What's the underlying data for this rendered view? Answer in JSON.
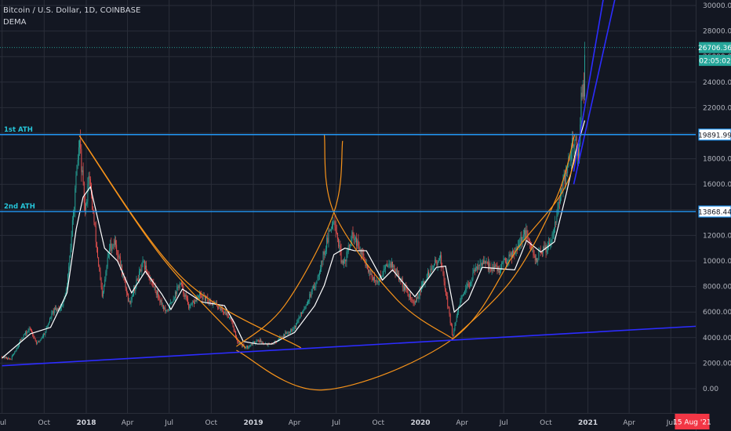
{
  "header": {
    "symbol_line": "Bitcoin / U.S. Dollar, 1D, COINBASE",
    "indicator": "DEMA"
  },
  "colors": {
    "background": "#131722",
    "grid": "#2a2e39",
    "axis_text": "#b2b5be",
    "candle_up": "#26a69a",
    "candle_down": "#ef5350",
    "dema": "#ffffff",
    "ath_line": "#2196f3",
    "ath_label": "#26c6da",
    "arc": "#f7931a",
    "trend": "#2c2cff",
    "current_price": "#26a69a",
    "date_badge": "#f23645"
  },
  "chart_data": {
    "type": "candlestick",
    "y_axis": {
      "ticks": [
        "30000.00",
        "28000.00",
        "26000.00",
        "24000.00",
        "22000.00",
        "20000.00",
        "18000.00",
        "16000.00",
        "14000.00",
        "12000.00",
        "10000.00",
        "8000.00",
        "6000.00",
        "4000.00",
        "2000.00",
        "0.00"
      ],
      "range": [
        -1800,
        30500
      ]
    },
    "x_axis": {
      "ticks": [
        "Jul",
        "Oct",
        "2018",
        "Apr",
        "Jul",
        "Oct",
        "2019",
        "Apr",
        "Jul",
        "Oct",
        "2020",
        "Apr",
        "Jul",
        "Oct",
        "2021",
        "Apr",
        "Jul"
      ],
      "bold": [
        "2018",
        "2019",
        "2020",
        "2021"
      ]
    },
    "price_labels": [
      {
        "text": "26706.36",
        "value": 26706.36,
        "kind": "current"
      },
      {
        "text": "02:05:02",
        "value": 25700,
        "kind": "countdown"
      },
      {
        "text": "19891.99",
        "value": 19891.99,
        "kind": "level"
      },
      {
        "text": "13868.44",
        "value": 13868.44,
        "kind": "level"
      }
    ],
    "date_badge": "15 Aug '21",
    "horizontal_levels": [
      {
        "label": "1st ATH",
        "value": 19891.99
      },
      {
        "label": "2nd ATH",
        "value": 13868.44
      }
    ],
    "price_path": [
      [
        "2017-07-01",
        2500
      ],
      [
        "2017-07-20",
        2300
      ],
      [
        "2017-08-15",
        4100
      ],
      [
        "2017-09-01",
        4700
      ],
      [
        "2017-09-15",
        3500
      ],
      [
        "2017-10-01",
        4300
      ],
      [
        "2017-10-20",
        6000
      ],
      [
        "2017-11-10",
        6500
      ],
      [
        "2017-11-20",
        8000
      ],
      [
        "2017-12-07",
        15000
      ],
      [
        "2017-12-17",
        19500
      ],
      [
        "2017-12-30",
        13500
      ],
      [
        "2018-01-06",
        17000
      ],
      [
        "2018-02-05",
        7000
      ],
      [
        "2018-02-20",
        11000
      ],
      [
        "2018-03-05",
        11500
      ],
      [
        "2018-04-05",
        6700
      ],
      [
        "2018-05-05",
        9800
      ],
      [
        "2018-06-25",
        5900
      ],
      [
        "2018-07-25",
        8300
      ],
      [
        "2018-08-15",
        6300
      ],
      [
        "2018-09-05",
        7300
      ],
      [
        "2018-10-15",
        6500
      ],
      [
        "2018-11-14",
        5500
      ],
      [
        "2018-11-25",
        3800
      ],
      [
        "2018-12-15",
        3200
      ],
      [
        "2019-01-10",
        3800
      ],
      [
        "2019-02-08",
        3400
      ],
      [
        "2019-04-02",
        4900
      ],
      [
        "2019-05-15",
        8000
      ],
      [
        "2019-06-26",
        13500
      ],
      [
        "2019-07-15",
        9500
      ],
      [
        "2019-08-06",
        12000
      ],
      [
        "2019-09-25",
        8200
      ],
      [
        "2019-10-26",
        10000
      ],
      [
        "2019-12-18",
        6600
      ],
      [
        "2020-01-15",
        8800
      ],
      [
        "2020-02-13",
        10400
      ],
      [
        "2020-03-12",
        4000
      ],
      [
        "2020-03-25",
        6500
      ],
      [
        "2020-05-08",
        9900
      ],
      [
        "2020-06-20",
        9300
      ],
      [
        "2020-07-27",
        11000
      ],
      [
        "2020-08-17",
        12200
      ],
      [
        "2020-09-08",
        10100
      ],
      [
        "2020-10-10",
        11400
      ],
      [
        "2020-11-05",
        15500
      ],
      [
        "2020-11-25",
        18500
      ],
      [
        "2020-12-01",
        19800
      ],
      [
        "2020-12-12",
        18000
      ],
      [
        "2020-12-17",
        23000
      ],
      [
        "2020-12-23",
        23300
      ],
      [
        "2020-12-26",
        26700
      ]
    ],
    "dema_path": [
      [
        "2017-07-01",
        2400
      ],
      [
        "2017-09-01",
        4300
      ],
      [
        "2017-10-15",
        4800
      ],
      [
        "2017-11-20",
        7500
      ],
      [
        "2017-12-10",
        12500
      ],
      [
        "2017-12-25",
        15000
      ],
      [
        "2018-01-10",
        15800
      ],
      [
        "2018-02-10",
        11000
      ],
      [
        "2018-03-10",
        10000
      ],
      [
        "2018-04-10",
        7500
      ],
      [
        "2018-05-10",
        9200
      ],
      [
        "2018-06-15",
        7400
      ],
      [
        "2018-07-05",
        6200
      ],
      [
        "2018-07-30",
        7800
      ],
      [
        "2018-09-10",
        6800
      ],
      [
        "2018-10-30",
        6500
      ],
      [
        "2018-11-20",
        5200
      ],
      [
        "2018-12-10",
        3700
      ],
      [
        "2019-01-10",
        3500
      ],
      [
        "2019-02-10",
        3500
      ],
      [
        "2019-04-01",
        4400
      ],
      [
        "2019-05-15",
        6500
      ],
      [
        "2019-06-05",
        8100
      ],
      [
        "2019-06-26",
        10500
      ],
      [
        "2019-07-20",
        11000
      ],
      [
        "2019-08-10",
        10800
      ],
      [
        "2019-09-05",
        10800
      ],
      [
        "2019-10-10",
        8500
      ],
      [
        "2019-11-01",
        9300
      ],
      [
        "2019-12-20",
        7200
      ],
      [
        "2020-02-05",
        9500
      ],
      [
        "2020-02-25",
        9600
      ],
      [
        "2020-03-15",
        6000
      ],
      [
        "2020-04-15",
        7000
      ],
      [
        "2020-05-15",
        9500
      ],
      [
        "2020-07-25",
        9300
      ],
      [
        "2020-08-20",
        11600
      ],
      [
        "2020-09-20",
        10700
      ],
      [
        "2020-10-20",
        11500
      ],
      [
        "2020-11-15",
        15300
      ],
      [
        "2020-12-05",
        18500
      ],
      [
        "2020-12-25",
        21000
      ]
    ],
    "arcs": [
      {
        "name": "arc-1",
        "points": [
          [
            "2017-12-17",
            19800
          ],
          [
            "2018-06-15",
            10300
          ],
          [
            "2018-12-15",
            3200
          ]
        ]
      },
      {
        "name": "arc-2",
        "points": [
          [
            "2017-12-17",
            19800
          ],
          [
            "2018-08-01",
            8600
          ],
          [
            "2019-04-15",
            3200
          ]
        ]
      },
      {
        "name": "arc-3",
        "points": [
          [
            "2018-11-25",
            3300
          ],
          [
            "2019-03-10",
            6500
          ],
          [
            "2019-06-26",
            13800
          ],
          [
            "2019-07-15",
            19400
          ]
        ]
      },
      {
        "name": "arc-4",
        "points": [
          [
            "2019-06-05",
            19900
          ],
          [
            "2019-06-26",
            13800
          ],
          [
            "2019-11-10",
            7000
          ],
          [
            "2020-03-12",
            3900
          ]
        ]
      },
      {
        "name": "arc-5",
        "points": [
          [
            "2020-03-12",
            3900
          ],
          [
            "2020-07-20",
            8600
          ],
          [
            "2020-10-25",
            15000
          ],
          [
            "2020-12-03",
            19900
          ]
        ]
      },
      {
        "name": "arc-6",
        "points": [
          [
            "2018-11-25",
            3000
          ],
          [
            "2019-06-01",
            -100
          ],
          [
            "2020-03-12",
            3900
          ],
          [
            "2020-08-01",
            11000
          ],
          [
            "2020-11-15",
            16000
          ],
          [
            "2020-12-25",
            22000
          ]
        ]
      }
    ],
    "trend_lines": [
      {
        "name": "trendline-support",
        "start": [
          "2017-07-01",
          1800
        ],
        "end": [
          "2021-09-01",
          4900
        ]
      },
      {
        "name": "trendline-steep-1",
        "start": [
          "2020-12-01",
          17000
        ],
        "end": [
          "2021-02-06",
          31000
        ]
      },
      {
        "name": "trendline-steep-2",
        "start": [
          "2020-12-01",
          16000
        ],
        "end": [
          "2021-03-01",
          30500
        ]
      }
    ]
  }
}
